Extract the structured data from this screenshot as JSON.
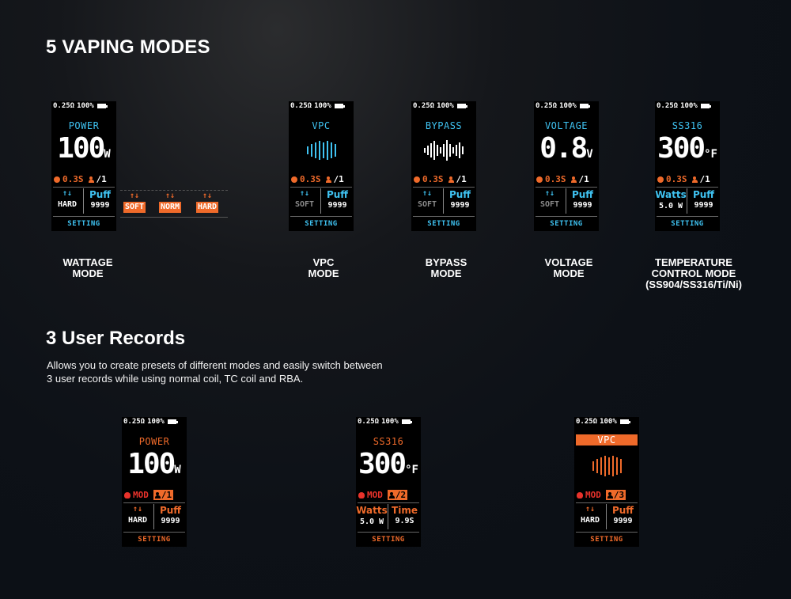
{
  "section1_title": "5 VAPING MODES",
  "section2_title": "3 User Records",
  "section2_desc": [
    "Allows you to create presets of different modes and easily switch between",
    "3 user records while using normal coil, TC coil and RBA."
  ],
  "colors": {
    "cyan": "#3fc3f2",
    "orange": "#ef6a2a",
    "red": "#e8322b",
    "gray": "#8a8a8a"
  },
  "screen_common": {
    "resistance": "0.25Ω",
    "battery": "100%",
    "setting": "SETTING",
    "puff_label": "Puff",
    "puff_value": "9999"
  },
  "mode_screens": [
    {
      "mode_label": "POWER",
      "value": "100",
      "unit": "W",
      "stat": "0.3S",
      "user": "/1",
      "left_arrows": "↑↓",
      "left_value": "HARD",
      "right_label": "Puff",
      "right_value": "9999",
      "left_label": ""
    },
    {
      "mode_label": "VPC",
      "visual": "vpc-bars-icon",
      "stat": "0.3S",
      "user": "/1",
      "left_arrows": "↑↓",
      "left_value": "SOFT",
      "right_label": "Puff",
      "right_value": "9999",
      "left_label": ""
    },
    {
      "mode_label": "BYPASS",
      "visual": "waveform-icon",
      "stat": "0.3S",
      "user": "/1",
      "left_arrows": "↑↓",
      "left_value": "SOFT",
      "right_label": "Puff",
      "right_value": "9999",
      "left_label": ""
    },
    {
      "mode_label": "VOLTAGE",
      "value": "0.8",
      "unit": "V",
      "stat": "0.3S",
      "user": "/1",
      "left_arrows": "↑↓",
      "left_value": "SOFT",
      "right_label": "Puff",
      "right_value": "9999",
      "left_label": ""
    },
    {
      "mode_label": "SS316",
      "value": "300",
      "unit": "°F",
      "stat": "0.3S",
      "user": "/1",
      "left_label": "Watts",
      "left_value": "5.0 W",
      "right_label": "Puff",
      "right_value": "9999",
      "left_arrows": ""
    }
  ],
  "preheat_options": [
    {
      "arrows": "↑↓",
      "label": "SOFT"
    },
    {
      "arrows": "↑↓",
      "label": "NORM"
    },
    {
      "arrows": "↑↓",
      "label": "HARD"
    }
  ],
  "mode_captions": [
    [
      "WATTAGE",
      "MODE"
    ],
    [
      "VPC",
      "MODE"
    ],
    [
      "BYPASS",
      "MODE"
    ],
    [
      "VOLTAGE",
      "MODE"
    ],
    [
      "TEMPERATURE",
      "CONTROL MODE",
      "(SS904/SS316/Ti/Ni)"
    ]
  ],
  "record_screens": [
    {
      "mode_label": "POWER",
      "value": "100",
      "unit": "W",
      "stat": "MOD",
      "user": "/1",
      "left_arrows": "↑↓",
      "left_label": "",
      "left_value": "HARD",
      "right_label": "Puff",
      "right_value": "9999"
    },
    {
      "mode_label": "SS316",
      "value": "300",
      "unit": "°F",
      "stat": "MOD",
      "user": "/2",
      "left_arrows": "",
      "left_label": "Watts",
      "left_value": "5.0 W",
      "right_label": "Time",
      "right_value": "9.9S"
    },
    {
      "mode_label": "VPC",
      "visual": "vpc-bars-icon",
      "stat": "MOD",
      "user": "/3",
      "left_arrows": "↑↓",
      "left_label": "",
      "left_value": "HARD",
      "right_label": "Puff",
      "right_value": "9999"
    }
  ]
}
